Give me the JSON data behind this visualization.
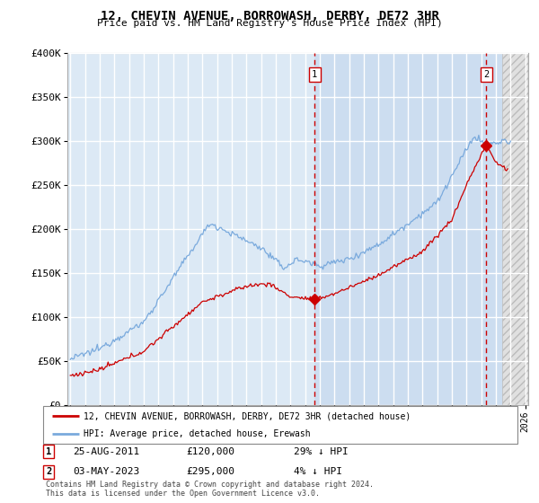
{
  "title": "12, CHEVIN AVENUE, BORROWASH, DERBY, DE72 3HR",
  "subtitle": "Price paid vs. HM Land Registry's House Price Index (HPI)",
  "legend_line1": "12, CHEVIN AVENUE, BORROWASH, DERBY, DE72 3HR (detached house)",
  "legend_line2": "HPI: Average price, detached house, Erewash",
  "annotation1_date": "25-AUG-2011",
  "annotation1_price": "£120,000",
  "annotation1_hpi": "29% ↓ HPI",
  "annotation2_date": "03-MAY-2023",
  "annotation2_price": "£295,000",
  "annotation2_hpi": "4% ↓ HPI",
  "footnote1": "Contains HM Land Registry data © Crown copyright and database right 2024.",
  "footnote2": "This data is licensed under the Open Government Licence v3.0.",
  "plot_bg_color": "#dce9f5",
  "shade_bg_color": "#ccddf0",
  "grid_color": "#ffffff",
  "red_line_color": "#cc0000",
  "blue_line_color": "#7aaadd",
  "dashed_vline_color": "#cc0000",
  "ylim_min": 0,
  "ylim_max": 400000,
  "yticks": [
    0,
    50000,
    100000,
    150000,
    200000,
    250000,
    300000,
    350000,
    400000
  ],
  "ytick_labels": [
    "£0",
    "£50K",
    "£100K",
    "£150K",
    "£200K",
    "£250K",
    "£300K",
    "£350K",
    "£400K"
  ],
  "sale1_x": 2011.65,
  "sale1_y": 120000,
  "sale2_x": 2023.34,
  "sale2_y": 295000,
  "hatch_start": 2024.45,
  "xmin": 1994.8,
  "xmax": 2026.2
}
